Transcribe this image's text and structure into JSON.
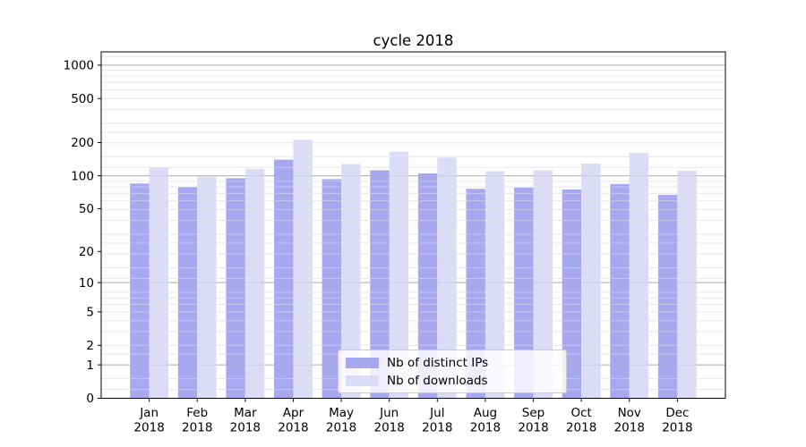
{
  "chart_data": {
    "type": "bar",
    "title": "cycle 2018",
    "categories": [
      "Jan",
      "Feb",
      "Mar",
      "Apr",
      "May",
      "Jun",
      "Jul",
      "Aug",
      "Sep",
      "Oct",
      "Nov",
      "Dec"
    ],
    "category_year": "2018",
    "series": [
      {
        "name": "Nb of distinct IPs",
        "color": "#a8a8f1",
        "values": [
          85,
          79,
          95,
          140,
          93,
          112,
          105,
          76,
          78,
          75,
          84,
          67
        ]
      },
      {
        "name": "Nb of downloads",
        "color": "#dcdcf7",
        "values": [
          119,
          98,
          115,
          212,
          128,
          165,
          146,
          110,
          112,
          129,
          161,
          111
        ]
      }
    ],
    "xlabel": "",
    "ylabel": "",
    "yscale": "log1p",
    "yticks": [
      0,
      1,
      2,
      5,
      10,
      20,
      50,
      100,
      200,
      500,
      1000
    ],
    "ylim": [
      0,
      1318
    ],
    "grid": true,
    "major_gridline_values": [
      1,
      10,
      100,
      1000
    ],
    "minor_gridline_subs": [
      1.2,
      1.5,
      2,
      2.5,
      3,
      4,
      5,
      6,
      7,
      8,
      9
    ],
    "legend_position": "lower center",
    "bar_width_fraction": 0.4
  },
  "style": {
    "major_grid_color": "#b0b0b0",
    "minor_grid_color": "#e9e9e9",
    "spine_color": "#000000",
    "text_color": "#000000",
    "background": "#ffffff"
  }
}
